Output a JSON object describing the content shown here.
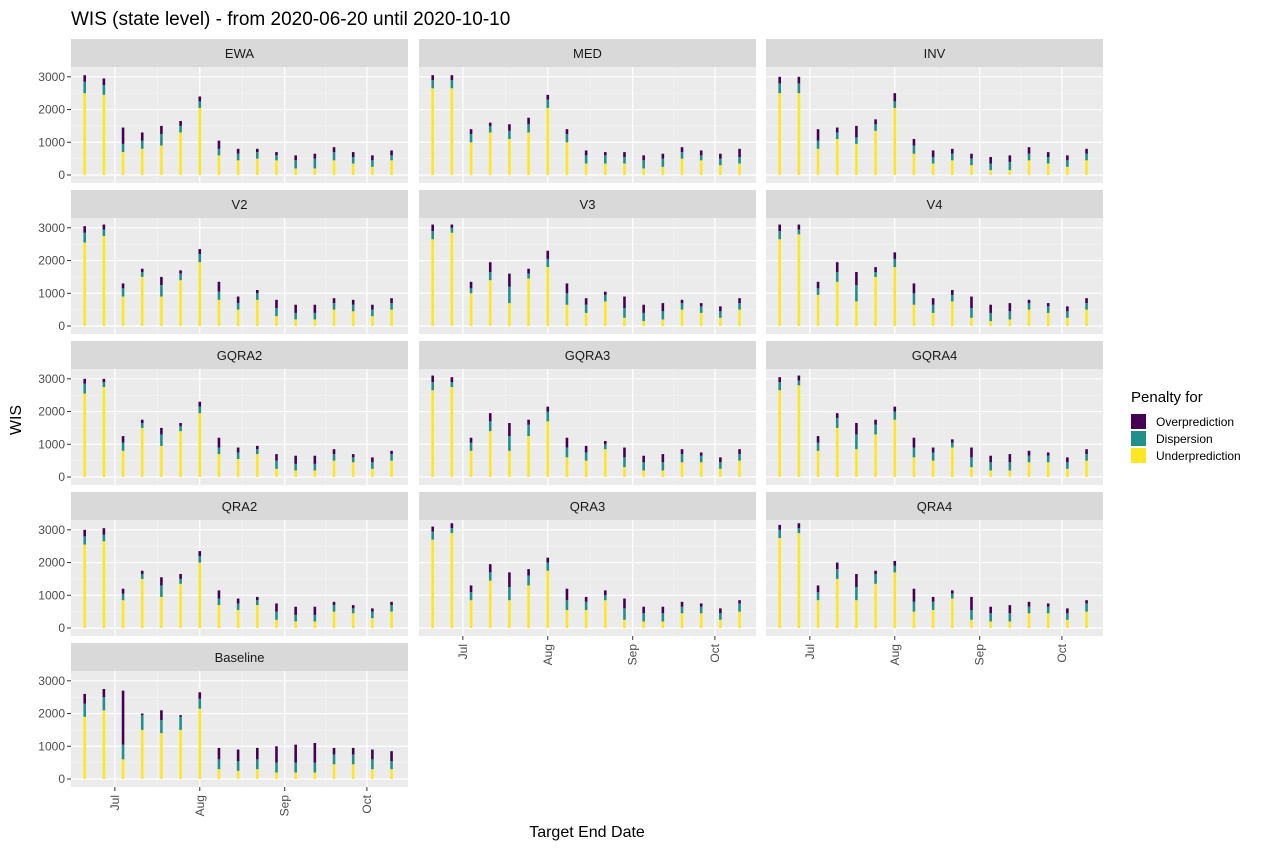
{
  "chart_data": {
    "type": "bar",
    "title": "WIS (state level) - from 2020-06-20 until 2020-10-10",
    "xlabel": "Target End Date",
    "ylabel": "WIS",
    "ylim": [
      0,
      3300
    ],
    "yticks": [
      0,
      1000,
      2000,
      3000
    ],
    "xticks": [
      {
        "label": "Jul",
        "date": "2020-07-01"
      },
      {
        "label": "Aug",
        "date": "2020-08-01"
      },
      {
        "label": "Sep",
        "date": "2020-09-01"
      },
      {
        "label": "Oct",
        "date": "2020-10-01"
      }
    ],
    "stacked": true,
    "grid": true,
    "legend": {
      "title": "Penalty for",
      "position": "right",
      "entries": [
        {
          "name": "Overprediction",
          "color": "#440154"
        },
        {
          "name": "Dispersion",
          "color": "#21908C"
        },
        {
          "name": "Underprediction",
          "color": "#FDE725"
        }
      ]
    },
    "dates": [
      "2020-06-20",
      "2020-06-27",
      "2020-07-04",
      "2020-07-11",
      "2020-07-18",
      "2020-07-25",
      "2020-08-01",
      "2020-08-08",
      "2020-08-15",
      "2020-08-22",
      "2020-08-29",
      "2020-09-05",
      "2020-09-12",
      "2020-09-19",
      "2020-09-26",
      "2020-10-03",
      "2020-10-10"
    ],
    "panels": [
      {
        "name": "EWA",
        "under": [
          2500,
          2450,
          700,
          800,
          900,
          1300,
          2050,
          600,
          450,
          500,
          450,
          200,
          200,
          450,
          350,
          250,
          450
        ],
        "disp": [
          350,
          300,
          250,
          250,
          350,
          200,
          200,
          200,
          200,
          200,
          150,
          250,
          300,
          250,
          200,
          200,
          150
        ],
        "over": [
          200,
          200,
          500,
          250,
          250,
          150,
          150,
          250,
          150,
          100,
          100,
          150,
          150,
          150,
          150,
          150,
          150
        ]
      },
      {
        "name": "MED",
        "under": [
          2650,
          2650,
          1000,
          1300,
          1100,
          1300,
          2050,
          1000,
          350,
          350,
          350,
          200,
          250,
          500,
          450,
          300,
          350
        ],
        "disp": [
          250,
          250,
          250,
          200,
          250,
          250,
          250,
          250,
          250,
          250,
          200,
          250,
          250,
          200,
          150,
          200,
          200
        ],
        "over": [
          150,
          150,
          150,
          100,
          200,
          200,
          150,
          150,
          150,
          100,
          150,
          150,
          150,
          150,
          150,
          150,
          250
        ]
      },
      {
        "name": "INV",
        "under": [
          2500,
          2500,
          800,
          1100,
          950,
          1350,
          2050,
          650,
          350,
          450,
          300,
          150,
          150,
          450,
          350,
          250,
          450
        ],
        "disp": [
          300,
          300,
          250,
          200,
          200,
          200,
          200,
          250,
          200,
          200,
          200,
          200,
          250,
          200,
          200,
          200,
          200
        ],
        "over": [
          200,
          200,
          350,
          150,
          350,
          150,
          250,
          200,
          200,
          150,
          150,
          200,
          200,
          200,
          150,
          150,
          150
        ]
      },
      {
        "name": "V2",
        "under": [
          2550,
          2750,
          900,
          1500,
          900,
          1400,
          1950,
          800,
          500,
          800,
          300,
          200,
          200,
          500,
          450,
          300,
          500
        ],
        "disp": [
          300,
          200,
          250,
          150,
          350,
          200,
          250,
          250,
          200,
          200,
          250,
          200,
          200,
          200,
          200,
          200,
          200
        ],
        "over": [
          200,
          150,
          150,
          100,
          250,
          100,
          150,
          300,
          200,
          100,
          250,
          250,
          250,
          150,
          150,
          150,
          150
        ]
      },
      {
        "name": "V3",
        "under": [
          2650,
          2850,
          1000,
          1400,
          700,
          1450,
          1800,
          650,
          400,
          750,
          250,
          150,
          200,
          500,
          400,
          250,
          500
        ],
        "disp": [
          250,
          150,
          150,
          250,
          500,
          150,
          250,
          350,
          250,
          200,
          300,
          250,
          250,
          200,
          200,
          200,
          200
        ],
        "over": [
          200,
          100,
          200,
          300,
          400,
          150,
          250,
          300,
          200,
          100,
          350,
          250,
          250,
          100,
          100,
          150,
          150
        ]
      },
      {
        "name": "V4",
        "under": [
          2650,
          2800,
          950,
          1350,
          750,
          1500,
          1800,
          650,
          400,
          750,
          250,
          150,
          200,
          500,
          400,
          250,
          500
        ],
        "disp": [
          250,
          150,
          200,
          300,
          500,
          150,
          250,
          350,
          250,
          200,
          300,
          250,
          250,
          200,
          200,
          200,
          200
        ],
        "over": [
          200,
          150,
          200,
          300,
          400,
          150,
          200,
          300,
          200,
          150,
          350,
          250,
          250,
          100,
          100,
          150,
          150
        ]
      },
      {
        "name": "GQRA2",
        "under": [
          2550,
          2750,
          800,
          1500,
          950,
          1400,
          1950,
          700,
          550,
          700,
          250,
          200,
          200,
          500,
          450,
          250,
          500
        ],
        "disp": [
          300,
          150,
          250,
          150,
          350,
          150,
          200,
          200,
          200,
          150,
          250,
          200,
          200,
          200,
          150,
          200,
          200
        ],
        "over": [
          150,
          100,
          200,
          100,
          200,
          100,
          150,
          300,
          150,
          100,
          200,
          250,
          250,
          150,
          100,
          150,
          100
        ]
      },
      {
        "name": "GQRA3",
        "under": [
          2650,
          2750,
          800,
          1400,
          800,
          1250,
          1700,
          600,
          500,
          850,
          300,
          200,
          200,
          450,
          450,
          250,
          500
        ],
        "disp": [
          250,
          150,
          250,
          300,
          450,
          350,
          300,
          300,
          250,
          150,
          300,
          250,
          250,
          250,
          200,
          200,
          200
        ],
        "over": [
          200,
          150,
          150,
          250,
          400,
          150,
          150,
          300,
          200,
          100,
          300,
          200,
          250,
          150,
          100,
          150,
          150
        ]
      },
      {
        "name": "GQRA4",
        "under": [
          2650,
          2800,
          800,
          1500,
          850,
          1300,
          1750,
          600,
          500,
          900,
          300,
          200,
          200,
          450,
          450,
          250,
          500
        ],
        "disp": [
          250,
          150,
          250,
          300,
          450,
          300,
          250,
          300,
          250,
          150,
          300,
          250,
          250,
          200,
          200,
          200,
          200
        ],
        "over": [
          150,
          150,
          200,
          150,
          350,
          150,
          150,
          300,
          150,
          100,
          300,
          200,
          250,
          150,
          100,
          150,
          150
        ]
      },
      {
        "name": "QRA2",
        "under": [
          2550,
          2650,
          850,
          1500,
          950,
          1350,
          2000,
          700,
          550,
          700,
          250,
          200,
          200,
          500,
          450,
          300,
          500
        ],
        "disp": [
          250,
          200,
          200,
          150,
          350,
          150,
          200,
          200,
          200,
          150,
          250,
          200,
          200,
          200,
          150,
          200,
          200
        ],
        "over": [
          200,
          200,
          150,
          100,
          250,
          150,
          150,
          250,
          150,
          100,
          250,
          250,
          250,
          100,
          100,
          100,
          100
        ]
      },
      {
        "name": "QRA3",
        "under": [
          2700,
          2900,
          850,
          1450,
          850,
          1300,
          1750,
          550,
          550,
          850,
          250,
          200,
          200,
          450,
          450,
          250,
          500
        ],
        "disp": [
          250,
          150,
          250,
          250,
          400,
          300,
          250,
          300,
          250,
          150,
          350,
          250,
          250,
          200,
          200,
          200,
          250
        ],
        "over": [
          150,
          150,
          200,
          250,
          450,
          200,
          150,
          350,
          150,
          150,
          300,
          200,
          200,
          150,
          100,
          150,
          100
        ]
      },
      {
        "name": "QRA4",
        "under": [
          2750,
          2900,
          850,
          1500,
          850,
          1350,
          1700,
          500,
          550,
          900,
          250,
          200,
          200,
          450,
          450,
          250,
          500
        ],
        "disp": [
          250,
          150,
          250,
          300,
          400,
          300,
          200,
          300,
          250,
          150,
          300,
          250,
          250,
          200,
          200,
          200,
          250
        ],
        "over": [
          150,
          150,
          200,
          200,
          400,
          100,
          150,
          400,
          150,
          100,
          400,
          200,
          250,
          150,
          100,
          150,
          100
        ]
      },
      {
        "name": "Baseline",
        "under": [
          1900,
          2100,
          600,
          1500,
          1400,
          1500,
          2150,
          300,
          250,
          300,
          200,
          200,
          200,
          450,
          450,
          300,
          300
        ],
        "disp": [
          400,
          400,
          450,
          450,
          400,
          400,
          300,
          300,
          300,
          300,
          300,
          300,
          300,
          300,
          300,
          300,
          250
        ],
        "over": [
          300,
          250,
          1650,
          50,
          300,
          50,
          200,
          350,
          350,
          350,
          500,
          550,
          600,
          200,
          200,
          300,
          300
        ]
      }
    ]
  }
}
